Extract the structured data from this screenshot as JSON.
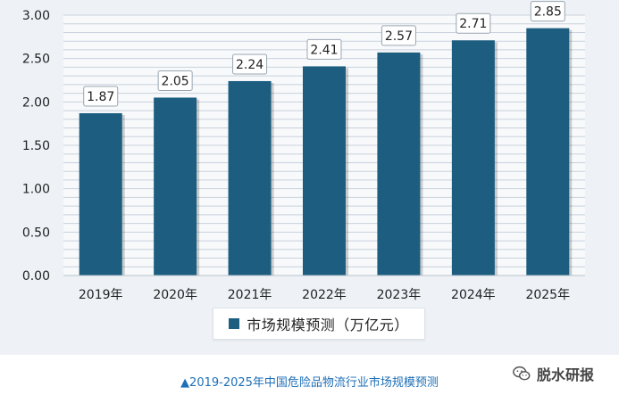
{
  "chart_data": {
    "type": "bar",
    "title": "",
    "xlabel": "",
    "ylabel": "",
    "categories": [
      "2019年",
      "2020年",
      "2021年",
      "2022年",
      "2023年",
      "2024年",
      "2025年"
    ],
    "series": [
      {
        "name": "市场规模预测（万亿元）",
        "values": [
          1.87,
          2.05,
          2.24,
          2.41,
          2.57,
          2.71,
          2.85
        ]
      }
    ],
    "data_labels": [
      "1.87",
      "2.05",
      "2.24",
      "2.41",
      "2.57",
      "2.71",
      "2.85"
    ],
    "y_ticks": [
      "0.00",
      "0.50",
      "1.00",
      "1.50",
      "2.00",
      "2.50",
      "3.00"
    ],
    "ylim": [
      0,
      3
    ],
    "grid": true,
    "legend_position": "bottom",
    "colors": {
      "bar": "#1c5d80",
      "grid": "#c9d2dc",
      "plot_bg": "#f7f9fb"
    }
  },
  "caption": "▲2019-2025年中国危险品物流行业市场规模预测",
  "watermark": {
    "text": "脱水研报",
    "icon": "wechat-icon"
  }
}
